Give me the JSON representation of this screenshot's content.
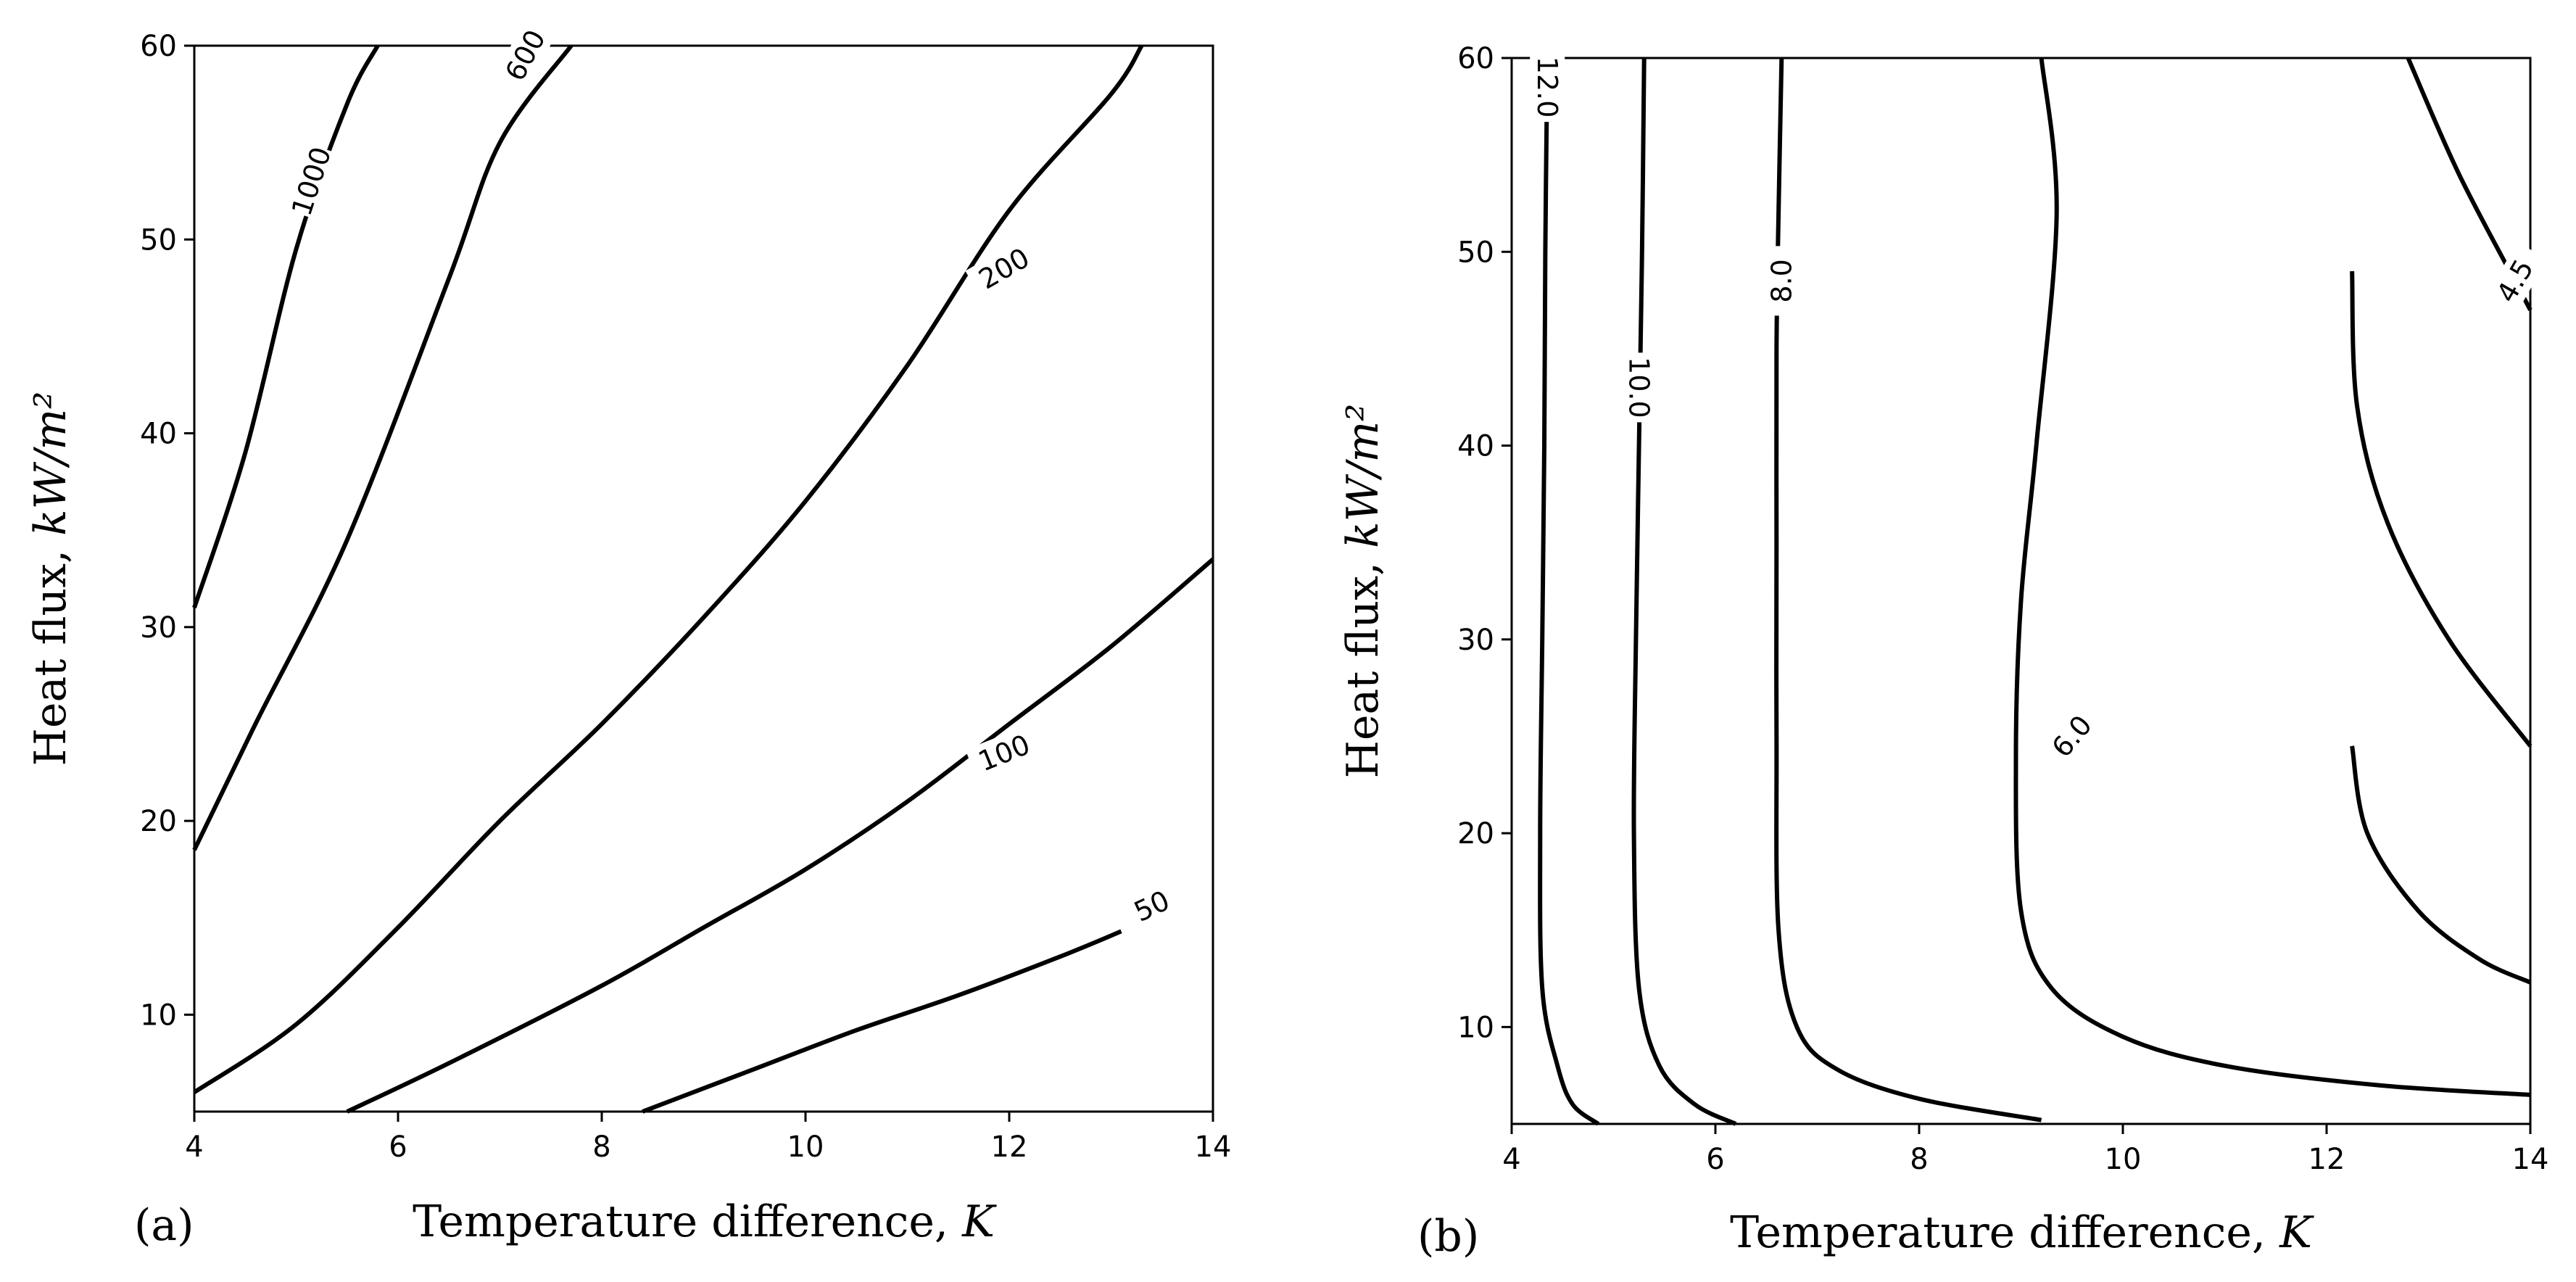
{
  "colors": {
    "line": "#000000",
    "background": "#ffffff"
  },
  "chart_data": [
    {
      "type": "contour",
      "panel_label": "(a)",
      "xlabel": "Temperature difference, ",
      "xlabel_var": "K",
      "ylabel": "Heat flux, ",
      "ylabel_unit": "kW/m²",
      "xlim": [
        4,
        14
      ],
      "ylim": [
        5,
        60
      ],
      "xticks": [
        4,
        6,
        8,
        10,
        12,
        14
      ],
      "yticks": [
        10,
        20,
        30,
        40,
        50,
        60
      ],
      "xtick_labels": [
        "4",
        "6",
        "8",
        "10",
        "12",
        "14"
      ],
      "ytick_labels": [
        "10",
        "20",
        "30",
        "40",
        "50",
        "60"
      ],
      "levels": [
        {
          "label": "1000",
          "points": [
            [
              4.0,
              31.0
            ],
            [
              4.5,
              39.0
            ],
            [
              5.0,
              49.5
            ],
            [
              5.5,
              57.0
            ],
            [
              5.8,
              60.0
            ]
          ],
          "label_at": [
            5.15,
            53.0
          ],
          "label_angle": -72
        },
        {
          "label": "600",
          "points": [
            [
              4.0,
              18.5
            ],
            [
              4.6,
              25.0
            ],
            [
              5.5,
              34.5
            ],
            [
              6.5,
              48.0
            ],
            [
              7.0,
              55.0
            ],
            [
              7.7,
              60.0
            ]
          ],
          "label_at": [
            7.25,
            59.5
          ],
          "label_angle": -62
        },
        {
          "label": "200",
          "points": [
            [
              4.0,
              6.0
            ],
            [
              5.0,
              9.5
            ],
            [
              6.0,
              14.5
            ],
            [
              7.0,
              20.0
            ],
            [
              8.0,
              25.0
            ],
            [
              9.0,
              30.5
            ],
            [
              10.0,
              36.5
            ],
            [
              11.0,
              43.5
            ],
            [
              12.0,
              51.5
            ],
            [
              13.0,
              57.5
            ],
            [
              13.3,
              60.0
            ]
          ],
          "label_at": [
            11.95,
            48.5
          ],
          "label_angle": -30
        },
        {
          "label": "100",
          "points": [
            [
              5.5,
              5.0
            ],
            [
              6.5,
              7.5
            ],
            [
              8.0,
              11.5
            ],
            [
              9.0,
              14.5
            ],
            [
              10.0,
              17.5
            ],
            [
              11.0,
              21.0
            ],
            [
              12.0,
              25.0
            ],
            [
              13.0,
              29.0
            ],
            [
              14.0,
              33.5
            ]
          ],
          "label_at": [
            11.95,
            23.5
          ],
          "label_angle": -22
        },
        {
          "label": "50",
          "points": [
            [
              8.4,
              5.0
            ],
            [
              9.5,
              7.2
            ],
            [
              10.5,
              9.2
            ],
            [
              11.5,
              11.0
            ],
            [
              12.5,
              13.0
            ],
            [
              13.1,
              14.3
            ]
          ],
          "label_at": [
            13.4,
            15.6
          ],
          "label_angle": -25
        }
      ]
    },
    {
      "type": "contour",
      "panel_label": "(b)",
      "xlabel": "Temperature difference, ",
      "xlabel_var": "K",
      "ylabel": "Heat flux, ",
      "ylabel_unit": "kW/m²",
      "xlim": [
        4,
        14
      ],
      "ylim": [
        5,
        60
      ],
      "xticks": [
        4,
        6,
        8,
        10,
        12,
        14
      ],
      "yticks": [
        10,
        20,
        30,
        40,
        50,
        60
      ],
      "xtick_labels": [
        "4",
        "6",
        "8",
        "10",
        "12",
        "14"
      ],
      "ytick_labels": [
        "10",
        "20",
        "30",
        "40",
        "50",
        "60"
      ],
      "levels": [
        {
          "label": "12.0",
          "points": [
            [
              4.35,
              60.0
            ],
            [
              4.33,
              50.0
            ],
            [
              4.32,
              40.0
            ],
            [
              4.3,
              30.0
            ],
            [
              4.28,
              20.0
            ],
            [
              4.3,
              12.0
            ],
            [
              4.45,
              8.0
            ],
            [
              4.6,
              6.0
            ],
            [
              4.85,
              5.0
            ]
          ],
          "label_at": [
            4.35,
            58.5
          ],
          "label_angle": 90
        },
        {
          "label": "10.0",
          "points": [
            [
              5.3,
              60.0
            ],
            [
              5.28,
              50.0
            ],
            [
              5.25,
              40.0
            ],
            [
              5.22,
              30.0
            ],
            [
              5.2,
              20.0
            ],
            [
              5.25,
              12.0
            ],
            [
              5.45,
              8.0
            ],
            [
              5.8,
              6.0
            ],
            [
              6.2,
              5.0
            ]
          ],
          "label_at": [
            5.25,
            43.0
          ],
          "label_angle": 90
        },
        {
          "label": "8.0",
          "points": [
            [
              6.65,
              60.0
            ],
            [
              6.62,
              52.0
            ],
            [
              6.6,
              45.0
            ],
            [
              6.6,
              35.0
            ],
            [
              6.6,
              25.0
            ],
            [
              6.62,
              15.0
            ],
            [
              6.8,
              10.0
            ],
            [
              7.2,
              7.8
            ],
            [
              8.0,
              6.3
            ],
            [
              9.2,
              5.2
            ]
          ],
          "label_at": [
            6.65,
            48.5
          ],
          "label_angle": -90
        },
        {
          "label": "6.0",
          "points": [
            [
              9.2,
              60.0
            ],
            [
              9.35,
              52.0
            ],
            [
              9.15,
              40.0
            ],
            [
              9.0,
              32.0
            ],
            [
              8.95,
              24.0
            ],
            [
              9.0,
              16.0
            ],
            [
              9.3,
              12.0
            ],
            [
              10.0,
              9.5
            ],
            [
              11.0,
              8.0
            ],
            [
              12.5,
              7.0
            ],
            [
              14.0,
              6.5
            ]
          ],
          "label_at": [
            9.5,
            25.0
          ],
          "label_angle": -50
        },
        {
          "label": "4.5",
          "points": [
            [
              12.8,
              60.0
            ],
            [
              13.3,
              54.0
            ],
            [
              13.9,
              48.0
            ],
            [
              14.0,
              47.0
            ]
          ],
          "label_at": [
            13.85,
            48.5
          ],
          "label_angle": -60
        },
        {
          "label": "",
          "points": [
            [
              12.25,
              49.0
            ],
            [
              12.3,
              42.0
            ],
            [
              12.6,
              36.0
            ],
            [
              13.2,
              30.0
            ],
            [
              14.0,
              24.5
            ]
          ],
          "label_at": null,
          "label_angle": 0
        },
        {
          "label": "",
          "points": [
            [
              12.25,
              24.5
            ],
            [
              12.4,
              20.0
            ],
            [
              12.9,
              16.0
            ],
            [
              13.5,
              13.5
            ],
            [
              14.0,
              12.3
            ]
          ],
          "label_at": null,
          "label_angle": 0
        }
      ]
    }
  ]
}
